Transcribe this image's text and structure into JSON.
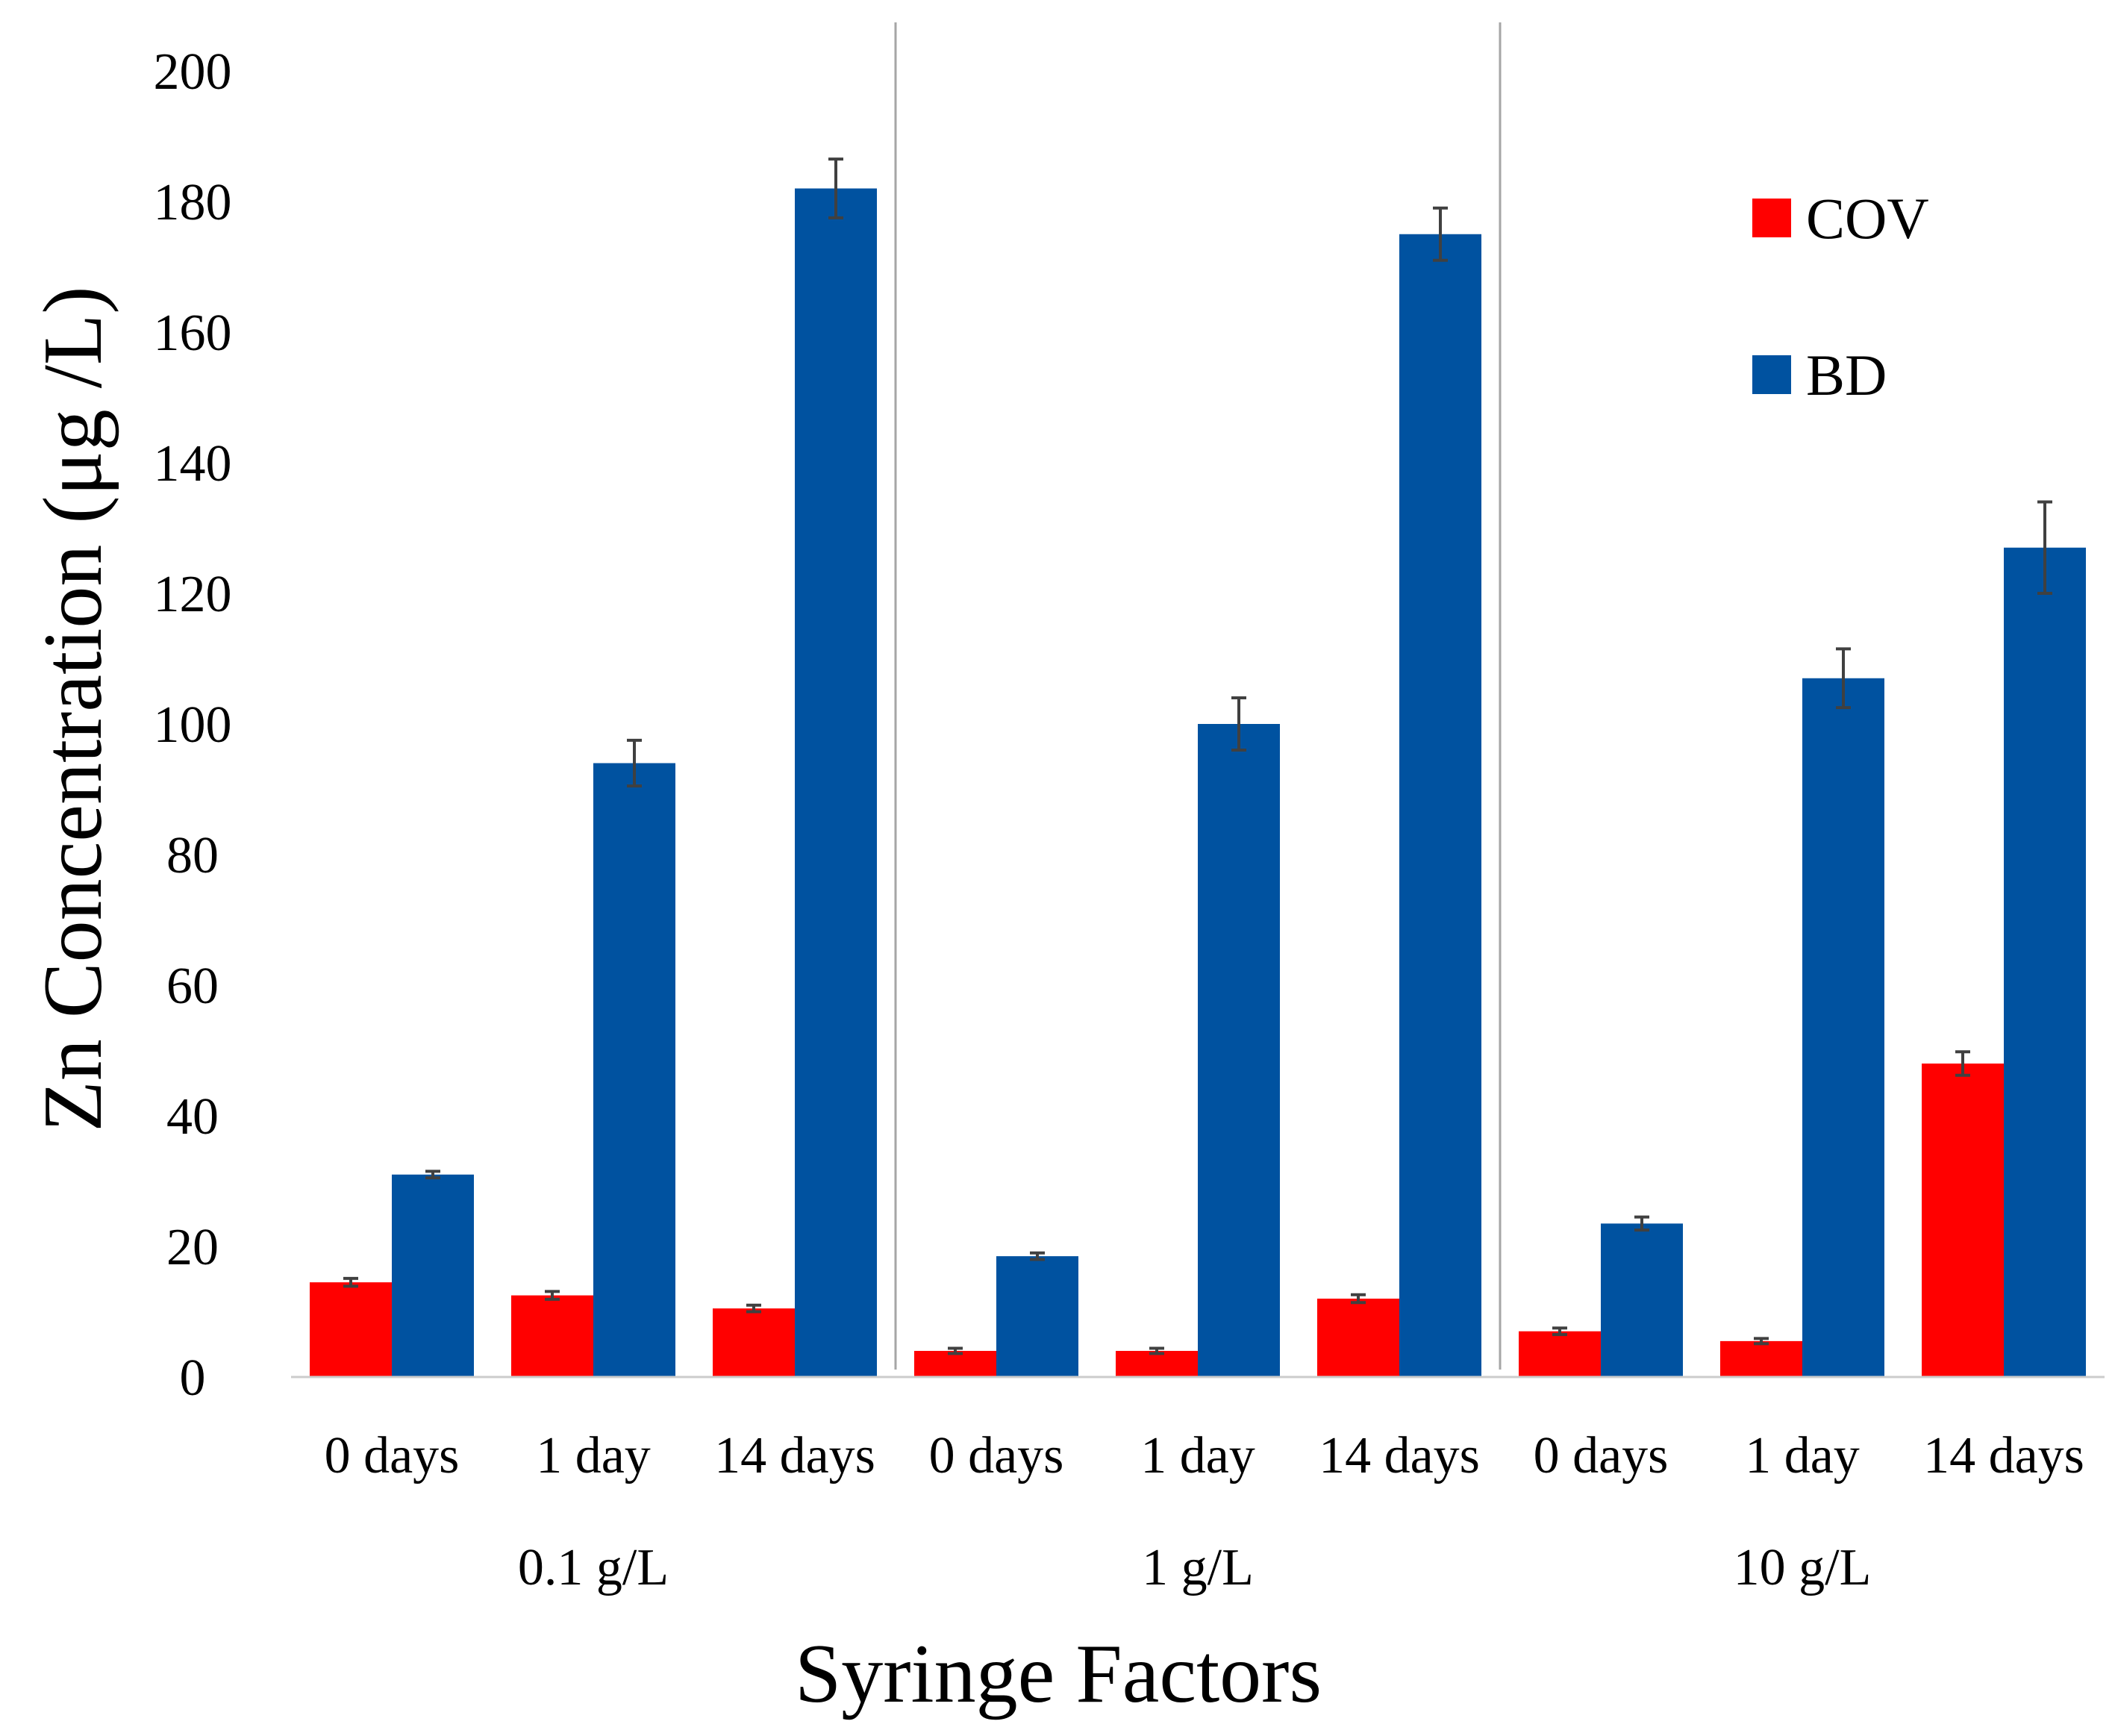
{
  "chart_data": {
    "type": "bar",
    "title": "",
    "xlabel": "Syringe Factors",
    "ylabel": "Zn Concentration (μg /L)",
    "ylim": [
      0,
      200
    ],
    "yticks": [
      0,
      20,
      40,
      60,
      80,
      100,
      120,
      140,
      160,
      180,
      200
    ],
    "groups": [
      "0.1 g/L",
      "1 g/L",
      "10 g/L"
    ],
    "categories": [
      "0 days",
      "1 day",
      "14 days",
      "0 days",
      "1 day",
      "14 days",
      "0 days",
      "1 day",
      "14 days"
    ],
    "group_of_category": [
      0,
      0,
      0,
      1,
      1,
      1,
      2,
      2,
      2
    ],
    "series": [
      {
        "name": "COV",
        "color": "#ff0000",
        "values": [
          14.5,
          12.5,
          10.5,
          4,
          4,
          12,
          7,
          5.5,
          48
        ],
        "errors": [
          0.6,
          0.6,
          0.5,
          0.4,
          0.4,
          0.6,
          0.5,
          0.4,
          1.8
        ]
      },
      {
        "name": "BD",
        "color": "#0052a0",
        "values": [
          31,
          94,
          182,
          18.5,
          100,
          175,
          23.5,
          107,
          127
        ],
        "errors": [
          0.5,
          3.5,
          4.5,
          0.5,
          4,
          4,
          1,
          4.5,
          7
        ]
      }
    ],
    "legend_position": "top-right",
    "grid": false
  }
}
